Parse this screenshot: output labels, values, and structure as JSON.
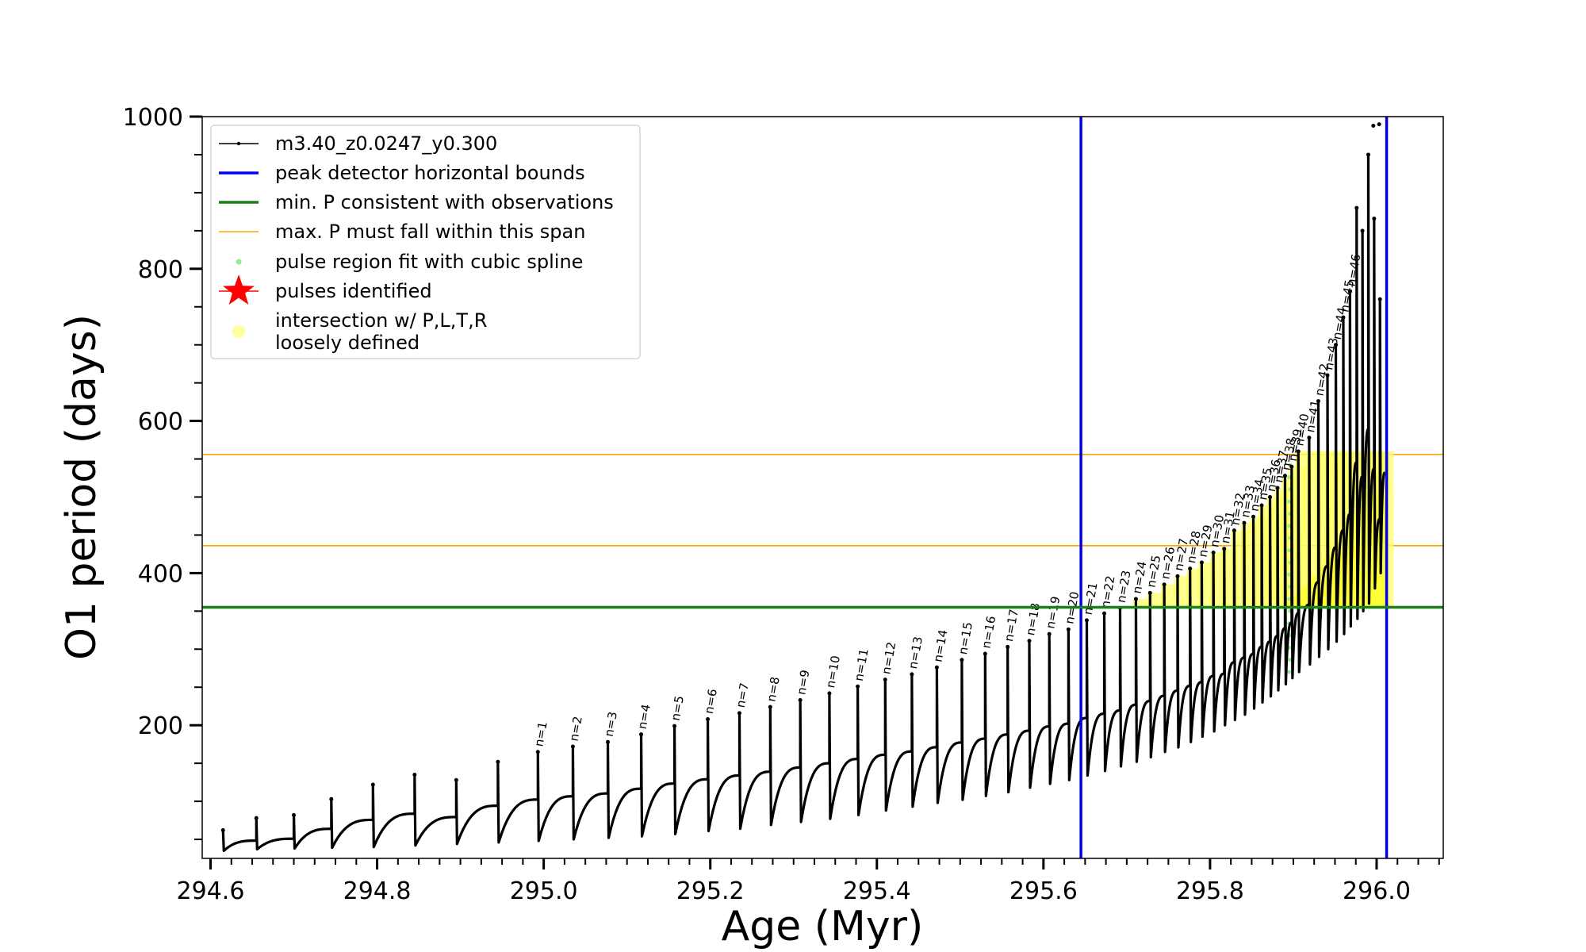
{
  "chart_data": {
    "type": "line",
    "xlabel": "Age (Myr)",
    "ylabel": "O1 period (days)",
    "xlim": [
      294.59,
      296.08
    ],
    "ylim": [
      25,
      1000
    ],
    "x_ticks": [
      294.6,
      294.8,
      295.0,
      295.2,
      295.4,
      295.6,
      295.8,
      296.0
    ],
    "x_tick_labels": [
      "294.6",
      "294.8",
      "295.0",
      "295.2",
      "295.4",
      "295.6",
      "295.8",
      "296.0"
    ],
    "y_ticks": [
      200,
      400,
      600,
      800,
      1000
    ],
    "y_tick_labels": [
      "200",
      "400",
      "600",
      "800",
      "1000"
    ],
    "grid": false,
    "legend_position": "top-left",
    "legend": [
      {
        "label": "m3.40_z0.0247_y0.300",
        "color": "#000000",
        "kind": "line-dot"
      },
      {
        "label": "peak detector horizontal bounds",
        "color": "#0000ee",
        "kind": "thick-line"
      },
      {
        "label": "min. P consistent with observations",
        "color": "#1a801a",
        "kind": "thick-line"
      },
      {
        "label": "max. P must fall within this span",
        "color": "#ffa500",
        "kind": "thin-line"
      },
      {
        "label": "pulse region fit with cubic spline",
        "color": "#90ee90",
        "kind": "dot"
      },
      {
        "label": "pulses identified",
        "color": "#ff0000",
        "kind": "star"
      },
      {
        "label": "intersection w/ P,L,T,R",
        "label2": "loosely defined",
        "color": "#ffffa0",
        "kind": "big-dot"
      }
    ],
    "vertical_bounds": [
      295.645,
      296.012
    ],
    "min_period": 355,
    "max_period_span": [
      436,
      556
    ],
    "series_name": "m3.40_z0.0247_y0.300",
    "pulses": [
      {
        "n": 0,
        "age": 294.615,
        "peak": 62,
        "min": 35
      },
      {
        "n": 0,
        "age": 294.655,
        "peak": 78,
        "min": 37
      },
      {
        "n": 0,
        "age": 294.7,
        "peak": 82,
        "min": 38
      },
      {
        "n": 0,
        "age": 294.745,
        "peak": 103,
        "min": 39
      },
      {
        "n": 0,
        "age": 294.795,
        "peak": 122,
        "min": 40
      },
      {
        "n": 0,
        "age": 294.845,
        "peak": 135,
        "min": 42
      },
      {
        "n": 0,
        "age": 294.895,
        "peak": 128,
        "min": 44
      },
      {
        "n": 0,
        "age": 294.945,
        "peak": 152,
        "min": 46
      },
      {
        "n": 1,
        "age": 294.993,
        "peak": 165,
        "min": 48
      },
      {
        "n": 2,
        "age": 295.035,
        "peak": 172,
        "min": 50
      },
      {
        "n": 3,
        "age": 295.077,
        "peak": 178,
        "min": 52
      },
      {
        "n": 4,
        "age": 295.117,
        "peak": 188,
        "min": 54
      },
      {
        "n": 5,
        "age": 295.157,
        "peak": 199,
        "min": 57
      },
      {
        "n": 6,
        "age": 295.197,
        "peak": 208,
        "min": 61
      },
      {
        "n": 7,
        "age": 295.235,
        "peak": 216,
        "min": 64
      },
      {
        "n": 8,
        "age": 295.272,
        "peak": 224,
        "min": 69
      },
      {
        "n": 9,
        "age": 295.308,
        "peak": 233,
        "min": 73
      },
      {
        "n": 10,
        "age": 295.343,
        "peak": 242,
        "min": 77
      },
      {
        "n": 11,
        "age": 295.377,
        "peak": 251,
        "min": 82
      },
      {
        "n": 12,
        "age": 295.41,
        "peak": 260,
        "min": 88
      },
      {
        "n": 13,
        "age": 295.442,
        "peak": 267,
        "min": 93
      },
      {
        "n": 14,
        "age": 295.472,
        "peak": 276,
        "min": 98
      },
      {
        "n": 15,
        "age": 295.502,
        "peak": 286,
        "min": 102
      },
      {
        "n": 16,
        "age": 295.53,
        "peak": 294,
        "min": 107
      },
      {
        "n": 17,
        "age": 295.557,
        "peak": 303,
        "min": 112
      },
      {
        "n": 18,
        "age": 295.583,
        "peak": 311,
        "min": 118
      },
      {
        "n": 19,
        "age": 295.607,
        "peak": 320,
        "min": 123
      },
      {
        "n": 20,
        "age": 295.63,
        "peak": 326,
        "min": 128
      },
      {
        "n": 21,
        "age": 295.652,
        "peak": 338,
        "min": 134
      },
      {
        "n": 22,
        "age": 295.673,
        "peak": 347,
        "min": 140
      },
      {
        "n": 23,
        "age": 295.692,
        "peak": 354,
        "min": 146
      },
      {
        "n": 24,
        "age": 295.711,
        "peak": 366,
        "min": 152
      },
      {
        "n": 25,
        "age": 295.728,
        "peak": 374,
        "min": 158
      },
      {
        "n": 26,
        "age": 295.745,
        "peak": 385,
        "min": 165
      },
      {
        "n": 27,
        "age": 295.761,
        "peak": 396,
        "min": 171
      },
      {
        "n": 28,
        "age": 295.776,
        "peak": 406,
        "min": 178
      },
      {
        "n": 29,
        "age": 295.79,
        "peak": 414,
        "min": 185
      },
      {
        "n": 30,
        "age": 295.804,
        "peak": 427,
        "min": 192
      },
      {
        "n": 31,
        "age": 295.817,
        "peak": 432,
        "min": 200
      },
      {
        "n": 32,
        "age": 295.829,
        "peak": 456,
        "min": 207
      },
      {
        "n": 33,
        "age": 295.841,
        "peak": 466,
        "min": 214
      },
      {
        "n": 34,
        "age": 295.852,
        "peak": 474,
        "min": 222
      },
      {
        "n": 35,
        "age": 295.862,
        "peak": 489,
        "min": 230
      },
      {
        "n": 36,
        "age": 295.872,
        "peak": 500,
        "min": 238
      },
      {
        "n": 37,
        "age": 295.881,
        "peak": 512,
        "min": 246
      },
      {
        "n": 38,
        "age": 295.89,
        "peak": 528,
        "min": 254
      },
      {
        "n": 39,
        "age": 295.898,
        "peak": 540,
        "min": 262
      },
      {
        "n": 40,
        "age": 295.906,
        "peak": 560,
        "min": 270
      },
      {
        "n": 41,
        "age": 295.919,
        "peak": 578,
        "min": 280
      },
      {
        "n": 42,
        "age": 295.93,
        "peak": 626,
        "min": 290
      },
      {
        "n": 43,
        "age": 295.941,
        "peak": 660,
        "min": 300
      },
      {
        "n": 44,
        "age": 295.951,
        "peak": 700,
        "min": 310
      },
      {
        "n": 45,
        "age": 295.96,
        "peak": 736,
        "min": 320
      },
      {
        "n": 46,
        "age": 295.968,
        "peak": 770,
        "min": 330
      },
      {
        "n": 0,
        "age": 295.976,
        "peak": 880,
        "min": 340
      },
      {
        "n": 0,
        "age": 295.983,
        "peak": 850,
        "min": 350
      },
      {
        "n": 0,
        "age": 295.99,
        "peak": 950,
        "min": 360
      },
      {
        "n": 0,
        "age": 295.997,
        "peak": 866,
        "min": 380
      },
      {
        "n": 0,
        "age": 296.004,
        "peak": 760,
        "min": 400
      }
    ],
    "pulse_labels": [
      "n=1",
      "n=2",
      "n=3",
      "n=4",
      "n=5",
      "n=6",
      "n=7",
      "n=8",
      "n=9",
      "n=10",
      "n=11",
      "n=12",
      "n=13",
      "n=14",
      "n=15",
      "n=16",
      "n=17",
      "n=18",
      "n=19",
      "n=20",
      "n=21",
      "n=22",
      "n=23",
      "n=24",
      "n=25",
      "n=26",
      "n=27",
      "n=28",
      "n=29",
      "n=30",
      "n=31",
      "n=32",
      "n=33",
      "n=34",
      "n=35",
      "n=36",
      "n=37",
      "n=38",
      "n=39",
      "n=40",
      "n=41",
      "n=42",
      "n=43",
      "n=44",
      "n=45",
      "n=46"
    ],
    "stray_points": [
      [
        295.996,
        988
      ],
      [
        296.003,
        990
      ]
    ]
  }
}
